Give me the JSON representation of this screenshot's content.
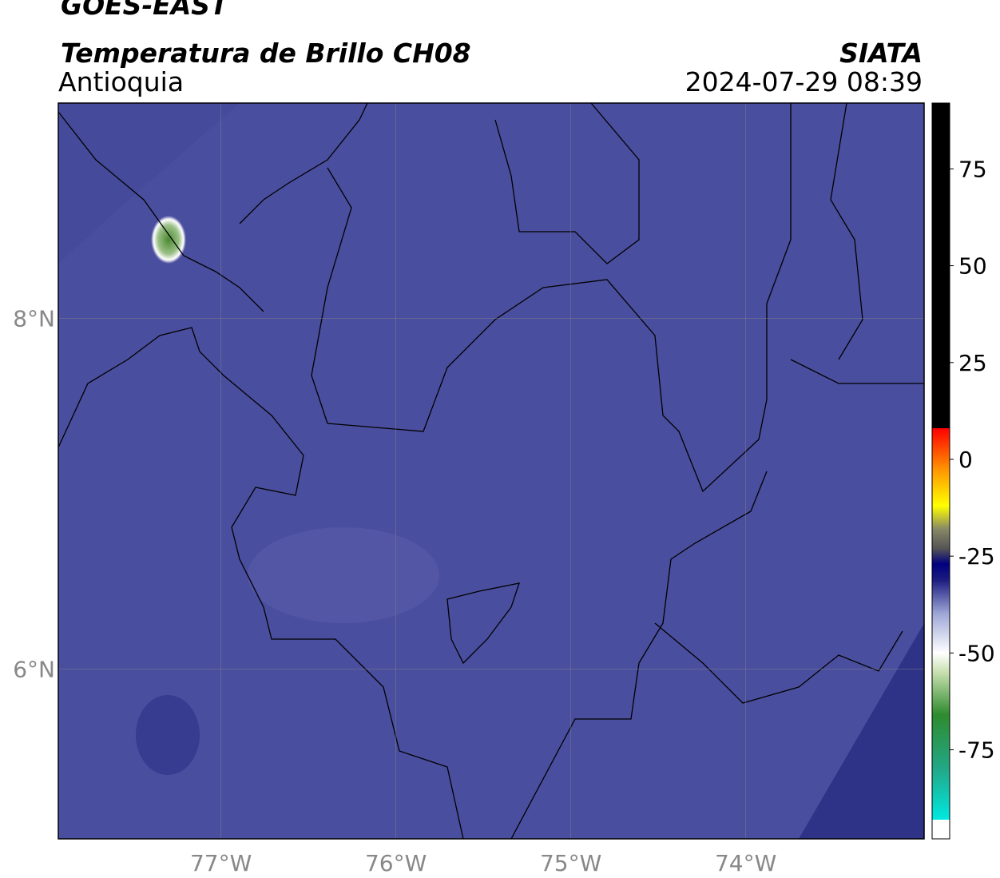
{
  "chart_data": {
    "type": "map",
    "title": "GOES-EAST",
    "subtitle": "Temperatura de Brillo CH08",
    "region": "Antioquia",
    "source": "SIATA",
    "timestamp": "2024-07-29 08:39",
    "xlim": [
      -77.93,
      -72.98
    ],
    "ylim": [
      5.03,
      9.23
    ],
    "xticks": [
      {
        "value": -77,
        "label": "77°W"
      },
      {
        "value": -76,
        "label": "76°W"
      },
      {
        "value": -75,
        "label": "75°W"
      },
      {
        "value": -74,
        "label": "74°W"
      }
    ],
    "yticks": [
      {
        "value": 6,
        "label": "6°N"
      },
      {
        "value": 8,
        "label": "8°N"
      }
    ],
    "grid": true,
    "colorbar": {
      "range": [
        -98,
        92
      ],
      "ticks": [
        75,
        50,
        25,
        0,
        -25,
        -50,
        -75
      ],
      "stops": [
        {
          "value": -98,
          "color": "#ffffff"
        },
        {
          "value": -93,
          "color": "#ffffff"
        },
        {
          "value": -93,
          "color": "#00e8e0"
        },
        {
          "value": -80,
          "color": "#22a888"
        },
        {
          "value": -66,
          "color": "#2e8b2e"
        },
        {
          "value": -55,
          "color": "#c8e0b0"
        },
        {
          "value": -50,
          "color": "#ffffff"
        },
        {
          "value": -40,
          "color": "#a0a8d8"
        },
        {
          "value": -31,
          "color": "#1a1a80"
        },
        {
          "value": -27,
          "color": "#000080"
        },
        {
          "value": -23,
          "color": "#555555"
        },
        {
          "value": -18,
          "color": "#888866"
        },
        {
          "value": -12,
          "color": "#ffff00"
        },
        {
          "value": -3,
          "color": "#ff9900"
        },
        {
          "value": 8,
          "color": "#ff0000"
        },
        {
          "value": 8,
          "color": "#000000"
        },
        {
          "value": 92,
          "color": "#000000"
        }
      ]
    }
  }
}
